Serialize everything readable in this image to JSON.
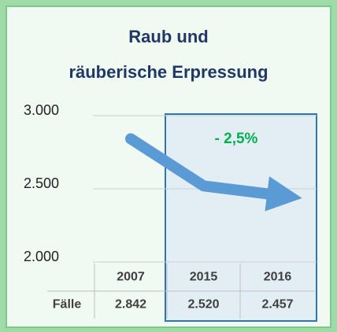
{
  "chart_data": {
    "type": "line",
    "title": [
      "Raub und",
      "räuberische Erpressung"
    ],
    "categories": [
      "2007",
      "2015",
      "2016"
    ],
    "row_label": "Fälle",
    "values": [
      2842,
      2520,
      2457
    ],
    "value_labels": [
      "2.842",
      "2.520",
      "2.457"
    ],
    "color": "#5b9bd5",
    "annotation": "- 2,5%",
    "ylim": [
      2000,
      3000
    ],
    "yticks": [
      {
        "value": 2000,
        "label": "2.000"
      },
      {
        "value": 2500,
        "label": "2.500"
      },
      {
        "value": 3000,
        "label": "3.000"
      }
    ],
    "grid": true
  }
}
